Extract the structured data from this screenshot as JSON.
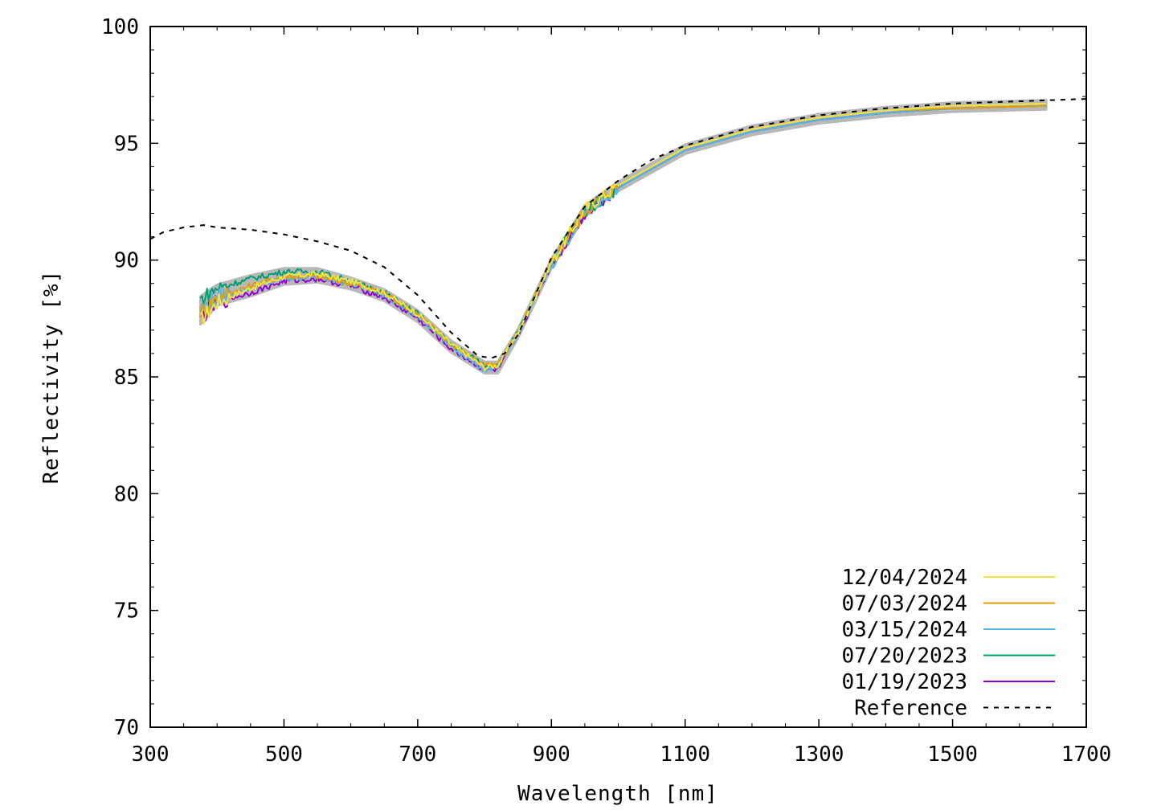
{
  "chart_data": {
    "type": "line",
    "title": "",
    "xlabel": "Wavelength [nm]",
    "ylabel": "Reflectivity [%]",
    "xlim": [
      300,
      1700
    ],
    "ylim": [
      70,
      100
    ],
    "xticks": [
      300,
      500,
      700,
      900,
      1100,
      1300,
      1500,
      1700
    ],
    "yticks": [
      70,
      75,
      80,
      85,
      90,
      95,
      100
    ],
    "grid": false,
    "legend_position": "bottom-right",
    "series": [
      {
        "name": "12/04/2024",
        "color": "#f0e442",
        "style": "solid",
        "x": [
          375,
          400,
          450,
          500,
          550,
          600,
          650,
          700,
          750,
          800,
          820,
          850,
          900,
          950,
          1000,
          1100,
          1200,
          1300,
          1400,
          1500,
          1640
        ],
        "y": [
          87.4,
          88.2,
          88.8,
          89.3,
          89.4,
          89.1,
          88.6,
          87.7,
          86.4,
          85.4,
          85.5,
          86.9,
          89.9,
          92.2,
          93.2,
          94.8,
          95.6,
          96.1,
          96.4,
          96.6,
          96.7
        ]
      },
      {
        "name": "07/03/2024",
        "color": "#e69f00",
        "style": "solid",
        "x": [
          375,
          400,
          450,
          500,
          550,
          600,
          650,
          700,
          750,
          800,
          820,
          850,
          900,
          950,
          1000,
          1100,
          1200,
          1300,
          1400,
          1500,
          1640
        ],
        "y": [
          87.8,
          88.4,
          88.9,
          89.3,
          89.3,
          89.0,
          88.6,
          87.7,
          86.4,
          85.5,
          85.5,
          86.9,
          89.9,
          92.1,
          93.2,
          94.8,
          95.6,
          96.1,
          96.4,
          96.5,
          96.6
        ]
      },
      {
        "name": "03/15/2024",
        "color": "#56b4e9",
        "style": "solid",
        "x": [
          375,
          400,
          450,
          500,
          550,
          600,
          650,
          700,
          750,
          800,
          820,
          850,
          900,
          950,
          1000,
          1100,
          1200,
          1300,
          1400,
          1500,
          1640
        ],
        "y": [
          87.9,
          88.4,
          88.8,
          89.2,
          89.3,
          89.0,
          88.5,
          87.6,
          86.3,
          85.3,
          85.4,
          86.8,
          89.8,
          92.0,
          93.1,
          94.7,
          95.5,
          96.0,
          96.3,
          96.5,
          96.6
        ]
      },
      {
        "name": "07/20/2023",
        "color": "#009e73",
        "style": "solid",
        "x": [
          375,
          400,
          450,
          500,
          550,
          600,
          650,
          700,
          750,
          800,
          820,
          850,
          900,
          950,
          1000,
          1100,
          1200,
          1300,
          1400,
          1500,
          1640
        ],
        "y": [
          88.3,
          88.8,
          89.2,
          89.5,
          89.5,
          89.1,
          88.6,
          87.7,
          86.4,
          85.5,
          85.5,
          86.9,
          89.9,
          92.1,
          93.1,
          94.7,
          95.5,
          96.0,
          96.3,
          96.5,
          96.6
        ]
      },
      {
        "name": "01/19/2023",
        "color": "#9400d3",
        "style": "solid",
        "x": [
          375,
          400,
          450,
          500,
          550,
          600,
          650,
          700,
          750,
          800,
          820,
          850,
          900,
          950,
          1000,
          1100,
          1200,
          1300,
          1400,
          1500,
          1640
        ],
        "y": [
          87.5,
          88.2,
          88.6,
          89.1,
          89.2,
          88.9,
          88.4,
          87.5,
          86.2,
          85.3,
          85.3,
          86.8,
          89.8,
          92.0,
          93.1,
          94.7,
          95.5,
          96.0,
          96.3,
          96.5,
          96.6
        ]
      },
      {
        "name": "Reference",
        "color": "#000000",
        "style": "dashed",
        "x": [
          300,
          320,
          350,
          380,
          400,
          450,
          500,
          550,
          600,
          650,
          700,
          750,
          790,
          810,
          830,
          850,
          870,
          900,
          950,
          1000,
          1050,
          1100,
          1200,
          1300,
          1400,
          1500,
          1600,
          1700
        ],
        "y": [
          90.9,
          91.2,
          91.4,
          91.5,
          91.4,
          91.3,
          91.1,
          90.8,
          90.4,
          89.7,
          88.5,
          86.9,
          85.9,
          85.8,
          86.0,
          86.8,
          88.1,
          90.1,
          92.3,
          93.4,
          94.3,
          94.9,
          95.7,
          96.2,
          96.5,
          96.7,
          96.8,
          96.9
        ]
      }
    ]
  }
}
